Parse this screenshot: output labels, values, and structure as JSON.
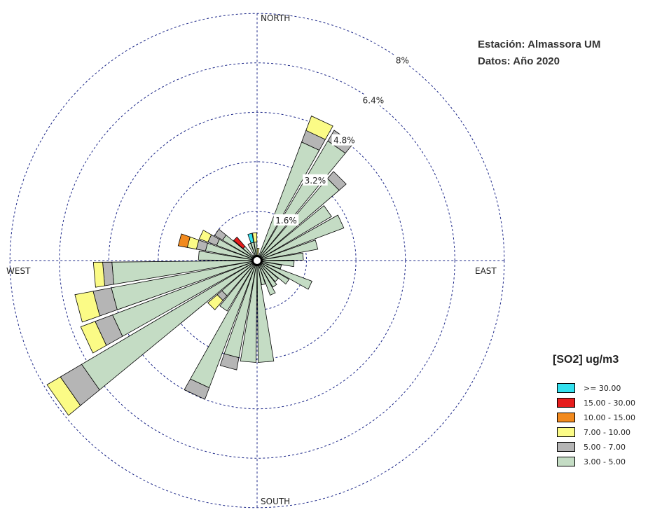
{
  "station": {
    "line1": "Estación: Almassora UM",
    "line2": "Datos: Año 2020"
  },
  "legend": {
    "title": "[SO2] ug/m3",
    "items": [
      {
        "label": ">= 30.00",
        "color": "#33e0ee"
      },
      {
        "label": "15.00 - 30.00",
        "color": "#e61c1c"
      },
      {
        "label": "10.00 - 15.00",
        "color": "#f28a1e"
      },
      {
        "label": "7.00 - 10.00",
        "color": "#fbfb86"
      },
      {
        "label": "5.00 - 7.00",
        "color": "#b5b5b5"
      },
      {
        "label": "3.00 - 5.00",
        "color": "#c4dcc4"
      }
    ]
  },
  "chart_data": {
    "type": "wind-rose",
    "directions": [
      "NORTH",
      "EAST",
      "SOUTH",
      "WEST"
    ],
    "rings": [
      {
        "value": 1.6,
        "label": "1.6%"
      },
      {
        "value": 3.2,
        "label": "3.2%"
      },
      {
        "value": 4.8,
        "label": "4.8%"
      },
      {
        "value": 6.4,
        "label": "6.4%"
      },
      {
        "value": 8.0,
        "label": "8%"
      }
    ],
    "bin_order": [
      "3.00 - 5.00",
      "5.00 - 7.00",
      "7.00 - 10.00",
      "10.00 - 15.00",
      "15.00 - 30.00",
      ">= 30.00"
    ],
    "sector_width_deg": 10,
    "sectors": [
      {
        "dir": 5,
        "values": [
          0.1,
          0,
          0.3,
          0,
          0,
          0
        ]
      },
      {
        "dir": 15,
        "values": [
          0.1,
          0,
          0,
          0,
          0,
          0
        ]
      },
      {
        "dir": 25,
        "values": [
          4.1,
          0.4,
          0.5,
          0,
          0,
          0
        ]
      },
      {
        "dir": 35,
        "values": [
          4.5,
          0.4,
          0,
          0,
          0,
          0
        ]
      },
      {
        "dir": 45,
        "values": [
          3.5,
          0.3,
          0,
          0,
          0,
          0
        ]
      },
      {
        "dir": 55,
        "values": [
          2.8,
          0,
          0,
          0,
          0,
          0
        ]
      },
      {
        "dir": 65,
        "values": [
          3.0,
          0,
          0,
          0,
          0,
          0
        ]
      },
      {
        "dir": 75,
        "values": [
          2.0,
          0,
          0,
          0,
          0,
          0
        ]
      },
      {
        "dir": 85,
        "values": [
          1.5,
          0,
          0,
          0,
          0,
          0
        ]
      },
      {
        "dir": 95,
        "values": [
          1.2,
          0,
          0,
          0,
          0,
          0
        ]
      },
      {
        "dir": 105,
        "values": [
          0.8,
          0,
          0,
          0,
          0,
          0
        ]
      },
      {
        "dir": 115,
        "values": [
          1.9,
          0,
          0,
          0,
          0,
          0
        ]
      },
      {
        "dir": 125,
        "values": [
          1.2,
          0,
          0,
          0,
          0,
          0
        ]
      },
      {
        "dir": 135,
        "values": [
          0.9,
          0,
          0,
          0,
          0,
          0
        ]
      },
      {
        "dir": 145,
        "values": [
          1.0,
          0,
          0,
          0,
          0,
          0
        ]
      },
      {
        "dir": 155,
        "values": [
          1.2,
          0,
          0,
          0,
          0,
          0
        ]
      },
      {
        "dir": 165,
        "values": [
          0.8,
          0,
          0,
          0,
          0,
          0
        ]
      },
      {
        "dir": 175,
        "values": [
          3.3,
          0,
          0,
          0,
          0,
          0
        ]
      },
      {
        "dir": 185,
        "values": [
          3.3,
          0,
          0,
          0,
          0,
          0
        ]
      },
      {
        "dir": 195,
        "values": [
          3.2,
          0.4,
          0,
          0,
          0,
          0
        ]
      },
      {
        "dir": 205,
        "values": [
          4.4,
          0.4,
          0,
          0,
          0,
          0
        ]
      },
      {
        "dir": 215,
        "values": [
          1.9,
          0,
          0,
          0,
          0,
          0
        ]
      },
      {
        "dir": 225,
        "values": [
          1.5,
          0.2,
          0.4,
          0,
          0,
          0
        ]
      },
      {
        "dir": 235,
        "values": [
          6.6,
          0.8,
          0.5,
          0,
          0,
          0
        ]
      },
      {
        "dir": 245,
        "values": [
          5.0,
          0.6,
          0.5,
          0,
          0,
          0
        ]
      },
      {
        "dir": 255,
        "values": [
          4.8,
          0.6,
          0.6,
          0,
          0,
          0
        ]
      },
      {
        "dir": 265,
        "values": [
          4.7,
          0.3,
          0.3,
          0,
          0,
          0
        ]
      },
      {
        "dir": 275,
        "values": [
          1.9,
          0,
          0,
          0,
          0,
          0
        ]
      },
      {
        "dir": 285,
        "values": [
          1.7,
          0.3,
          0.3,
          0.3,
          0,
          0
        ]
      },
      {
        "dir": 295,
        "values": [
          1.4,
          0.3,
          0.3,
          0,
          0,
          0
        ]
      },
      {
        "dir": 305,
        "values": [
          1.3,
          0.3,
          0,
          0,
          0,
          0
        ]
      },
      {
        "dir": 315,
        "values": [
          0.6,
          0,
          0,
          0,
          0.4,
          0
        ]
      },
      {
        "dir": 325,
        "values": [
          0.2,
          0,
          0,
          0,
          0,
          0
        ]
      },
      {
        "dir": 335,
        "values": [
          0.6,
          0,
          0,
          0,
          0,
          0
        ]
      },
      {
        "dir": 345,
        "values": [
          0.6,
          0,
          0,
          0,
          0,
          0.3
        ]
      },
      {
        "dir": 355,
        "values": [
          0.6,
          0,
          0.3,
          0,
          0,
          0
        ]
      }
    ]
  }
}
